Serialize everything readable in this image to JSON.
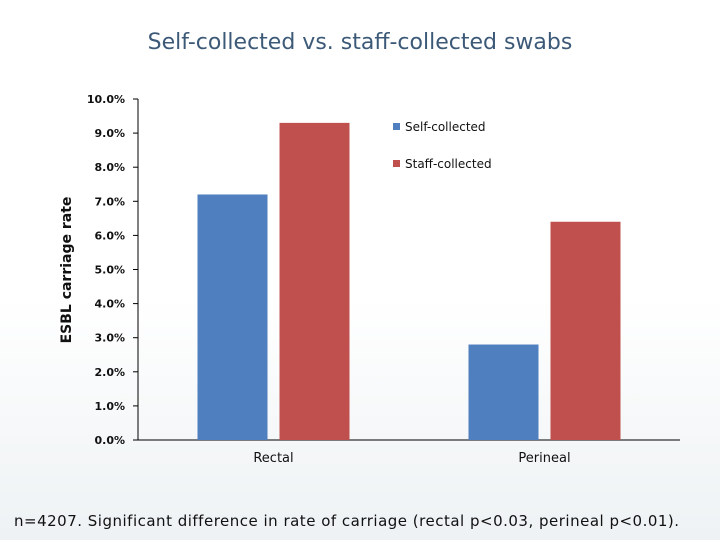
{
  "slide": {
    "title": "Self-collected vs. staff-collected swabs",
    "footnote": "n=4207. Significant difference in rate of carriage (rectal p<0.03, perineal p<0.01)."
  },
  "chart_data": {
    "type": "bar",
    "categories": [
      "Rectal",
      "Perineal"
    ],
    "series": [
      {
        "name": "Self-collected",
        "values": [
          7.2,
          2.8
        ],
        "color": "#4f7fbe"
      },
      {
        "name": "Staff-collected",
        "values": [
          9.3,
          6.4
        ],
        "color": "#c0504d"
      }
    ],
    "title": "Self-collected vs. staff-collected swabs",
    "xlabel": "",
    "ylabel": "ESBL carriage rate",
    "ylim": [
      0,
      10
    ],
    "yticks": [
      "0.0%",
      "1.0%",
      "2.0%",
      "3.0%",
      "4.0%",
      "5.0%",
      "6.0%",
      "7.0%",
      "8.0%",
      "9.0%",
      "10.0%"
    ],
    "grid": false,
    "legend": "top-right"
  }
}
